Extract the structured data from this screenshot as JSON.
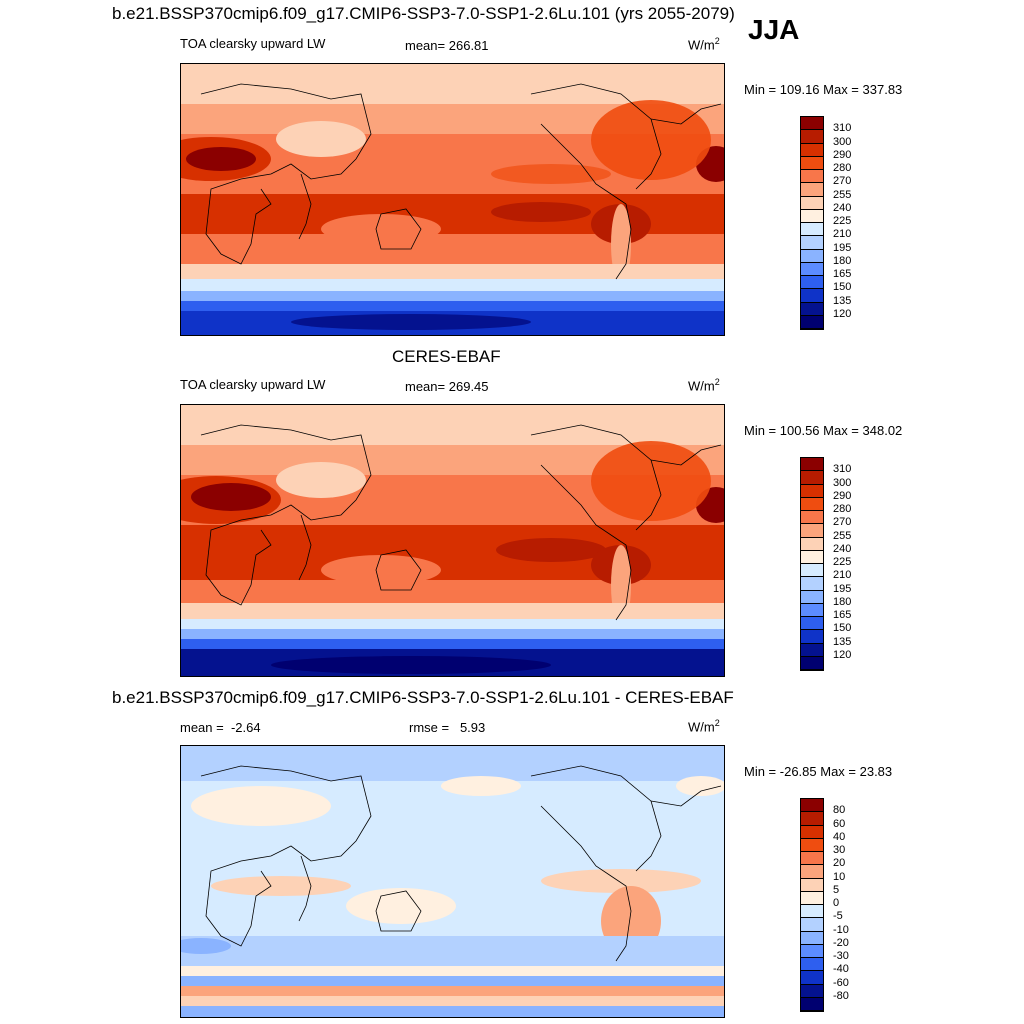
{
  "header": {
    "title": "b.e21.BSSP370cmip6.f09_g17.CMIP6-SSP3-7.0-SSP1-2.6Lu.101 (yrs 2055-2079)",
    "season": "JJA"
  },
  "panels": [
    {
      "id": "model",
      "variable": "TOA clearsky upward LW",
      "stat_label": "mean=",
      "stat_value": "266.81",
      "unit_base": "W/m",
      "unit_exp": "2",
      "minmax": "Min = 109.16 Max = 337.83",
      "colorbar": "abs"
    },
    {
      "id": "obs",
      "heading": "CERES-EBAF",
      "variable": "TOA clearsky upward LW",
      "stat_label": "mean=",
      "stat_value": "269.45",
      "unit_base": "W/m",
      "unit_exp": "2",
      "minmax": "Min = 100.56 Max = 348.02",
      "colorbar": "abs"
    },
    {
      "id": "diff",
      "heading": "b.e21.BSSP370cmip6.f09_g17.CMIP6-SSP3-7.0-SSP1-2.6Lu.101 - CERES-EBAF",
      "mean_label": "mean =",
      "mean_value": "-2.64",
      "rmse_label": "rmse =",
      "rmse_value": "5.93",
      "unit_base": "W/m",
      "unit_exp": "2",
      "minmax": "Min = -26.85 Max =  23.83",
      "colorbar": "diff"
    }
  ],
  "colorbars": {
    "abs": {
      "ticks": [
        "310",
        "300",
        "290",
        "280",
        "270",
        "255",
        "240",
        "225",
        "210",
        "195",
        "180",
        "165",
        "150",
        "135",
        "120"
      ],
      "colors": [
        "#8b0000",
        "#b71c00",
        "#d73000",
        "#ef4d10",
        "#f8764a",
        "#fba47c",
        "#fdd2b6",
        "#fff0e0",
        "#d6ebff",
        "#b3d1ff",
        "#8ab3ff",
        "#5c8cff",
        "#2e5fef",
        "#0f33c8",
        "#04128f",
        "#000070"
      ]
    },
    "diff": {
      "ticks": [
        "80",
        "60",
        "40",
        "30",
        "20",
        "10",
        "5",
        "0",
        "-5",
        "-10",
        "-20",
        "-30",
        "-40",
        "-60",
        "-80"
      ],
      "colors": [
        "#8b0000",
        "#b71c00",
        "#d73000",
        "#ef4d10",
        "#f8764a",
        "#fba47c",
        "#fdd2b6",
        "#fff0e0",
        "#d6ebff",
        "#b3d1ff",
        "#8ab3ff",
        "#5c8cff",
        "#2e5fef",
        "#0f33c8",
        "#04128f",
        "#000070"
      ]
    }
  }
}
